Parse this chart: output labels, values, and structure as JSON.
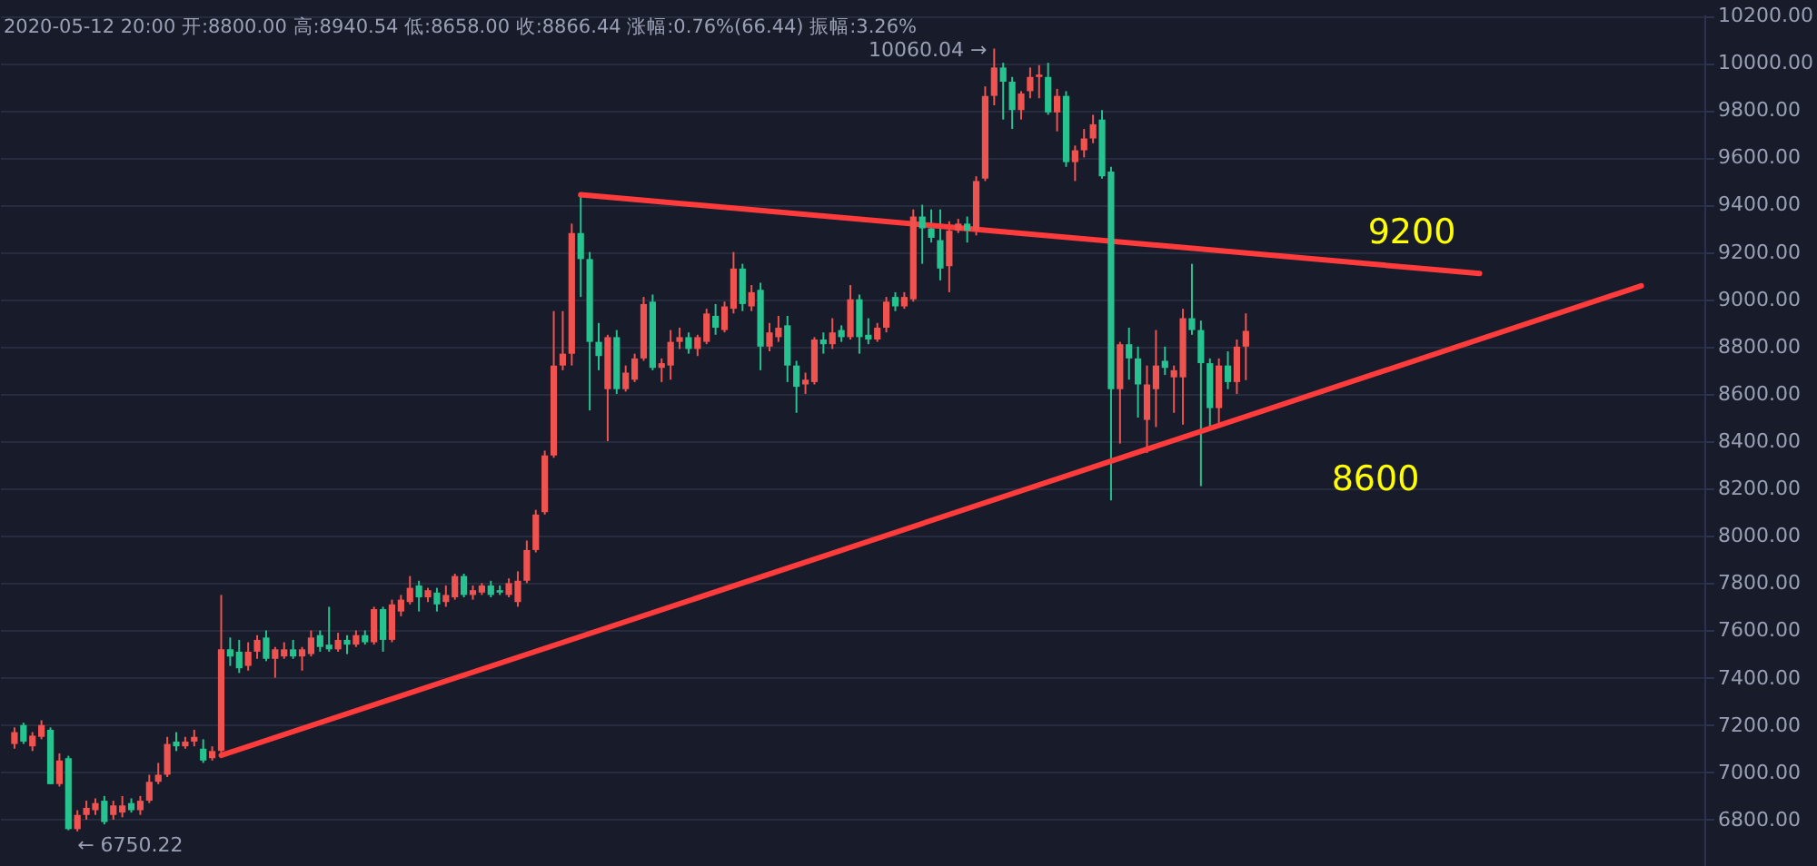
{
  "chart_data": {
    "type": "candlestick",
    "categories": [
      null,
      null,
      null,
      null,
      null,
      null,
      null,
      null,
      null,
      null,
      null,
      null,
      null,
      null,
      null,
      null,
      null,
      null,
      null,
      null,
      null,
      null,
      null,
      null,
      null,
      null,
      null,
      null,
      null,
      null,
      null,
      null,
      null,
      null,
      null,
      null,
      null,
      null,
      null,
      null,
      null,
      null,
      null,
      null,
      null,
      null,
      null,
      null,
      null,
      null,
      null,
      null,
      null,
      null,
      null,
      null,
      null,
      null,
      null,
      null,
      null,
      null,
      null,
      null,
      null,
      null,
      null,
      null,
      null,
      null,
      null,
      null,
      null,
      null,
      null,
      null,
      null,
      null,
      null,
      null,
      null,
      null,
      null,
      null,
      null,
      null,
      null,
      null,
      null,
      null,
      null,
      null,
      null,
      null,
      null,
      null,
      null,
      null,
      null,
      null,
      null,
      null,
      null,
      null,
      null,
      null,
      null,
      null,
      null,
      null,
      null,
      null,
      null,
      null,
      null,
      null,
      null,
      null,
      null,
      null,
      null,
      null,
      null,
      null,
      null,
      null,
      null,
      null,
      null,
      null,
      null,
      null,
      null,
      null,
      null,
      null,
      null,
      null,
      null,
      null,
      null,
      null,
      null,
      null,
      null,
      null,
      null,
      null,
      null,
      null,
      null,
      null,
      null,
      null,
      null,
      null,
      null,
      null,
      null,
      null,
      null,
      null,
      null,
      null,
      null,
      null,
      null,
      null,
      null,
      null,
      null,
      null,
      null,
      null,
      null,
      null,
      null,
      null,
      null,
      null,
      null,
      null
    ],
    "ohlc": [
      [
        7120,
        7190,
        7100,
        7170
      ],
      [
        7200,
        7210,
        7120,
        7130
      ],
      [
        7110,
        7170,
        7090,
        7155
      ],
      [
        7150,
        7220,
        7140,
        7200
      ],
      [
        7180,
        7190,
        6950,
        6950
      ],
      [
        6950,
        7080,
        6940,
        7050
      ],
      [
        7060,
        7070,
        6755,
        6760
      ],
      [
        6760,
        6840,
        6750.22,
        6820
      ],
      [
        6820,
        6880,
        6800,
        6850
      ],
      [
        6840,
        6890,
        6820,
        6870
      ],
      [
        6880,
        6900,
        6780,
        6790
      ],
      [
        6820,
        6880,
        6800,
        6860
      ],
      [
        6830,
        6900,
        6810,
        6860
      ],
      [
        6870,
        6890,
        6830,
        6840
      ],
      [
        6840,
        6900,
        6820,
        6880
      ],
      [
        6880,
        6990,
        6870,
        6960
      ],
      [
        6960,
        7040,
        6950,
        6990
      ],
      [
        6990,
        7150,
        6980,
        7120
      ],
      [
        7130,
        7170,
        7090,
        7110
      ],
      [
        7110,
        7150,
        7100,
        7130
      ],
      [
        7130,
        7180,
        7110,
        7150
      ],
      [
        7100,
        7140,
        7040,
        7050
      ],
      [
        7060,
        7110,
        7050,
        7090
      ],
      [
        7090,
        7750,
        7070,
        7520
      ],
      [
        7520,
        7570,
        7450,
        7490
      ],
      [
        7510,
        7560,
        7420,
        7440
      ],
      [
        7450,
        7550,
        7430,
        7510
      ],
      [
        7510,
        7580,
        7480,
        7560
      ],
      [
        7570,
        7600,
        7470,
        7480
      ],
      [
        7480,
        7530,
        7400,
        7520
      ],
      [
        7490,
        7550,
        7480,
        7520
      ],
      [
        7520,
        7560,
        7480,
        7490
      ],
      [
        7490,
        7530,
        7430,
        7520
      ],
      [
        7500,
        7600,
        7490,
        7570
      ],
      [
        7580,
        7600,
        7510,
        7530
      ],
      [
        7540,
        7700,
        7510,
        7520
      ],
      [
        7520,
        7590,
        7510,
        7560
      ],
      [
        7560,
        7580,
        7500,
        7540
      ],
      [
        7540,
        7600,
        7530,
        7580
      ],
      [
        7580,
        7600,
        7540,
        7550
      ],
      [
        7550,
        7700,
        7540,
        7690
      ],
      [
        7690,
        7700,
        7510,
        7560
      ],
      [
        7560,
        7730,
        7550,
        7710
      ],
      [
        7680,
        7750,
        7660,
        7730
      ],
      [
        7720,
        7830,
        7710,
        7780
      ],
      [
        7790,
        7810,
        7680,
        7740
      ],
      [
        7740,
        7780,
        7720,
        7770
      ],
      [
        7760,
        7780,
        7680,
        7710
      ],
      [
        7720,
        7790,
        7700,
        7750
      ],
      [
        7740,
        7840,
        7730,
        7830
      ],
      [
        7830,
        7840,
        7740,
        7750
      ],
      [
        7750,
        7790,
        7730,
        7770
      ],
      [
        7760,
        7800,
        7750,
        7790
      ],
      [
        7790,
        7810,
        7740,
        7750
      ],
      [
        7770,
        7790,
        7750,
        7760
      ],
      [
        7750,
        7820,
        7740,
        7800
      ],
      [
        7720,
        7850,
        7700,
        7810
      ],
      [
        7810,
        7980,
        7800,
        7940
      ],
      [
        7940,
        8110,
        7930,
        8090
      ],
      [
        8100,
        8360,
        8090,
        8340
      ],
      [
        8340,
        8950,
        8330,
        8720
      ],
      [
        8720,
        8950,
        8700,
        8770
      ],
      [
        8770,
        9320,
        8720,
        9280
      ],
      [
        9280,
        9442,
        9010,
        9170
      ],
      [
        9170,
        9200,
        8530,
        8820
      ],
      [
        8820,
        8900,
        8700,
        8760
      ],
      [
        8620,
        8850,
        8400,
        8840
      ],
      [
        8840,
        8870,
        8600,
        8620
      ],
      [
        8620,
        8720,
        8610,
        8690
      ],
      [
        8660,
        8770,
        8650,
        8750
      ],
      [
        8750,
        9010,
        8740,
        8980
      ],
      [
        8990,
        9020,
        8700,
        8710
      ],
      [
        8710,
        8750,
        8650,
        8730
      ],
      [
        8720,
        8870,
        8660,
        8820
      ],
      [
        8820,
        8880,
        8790,
        8840
      ],
      [
        8840,
        8860,
        8770,
        8790
      ],
      [
        8790,
        8850,
        8760,
        8840
      ],
      [
        8820,
        8960,
        8810,
        8940
      ],
      [
        8930,
        8980,
        8850,
        8880
      ],
      [
        8870,
        8990,
        8860,
        8970
      ],
      [
        8960,
        9200,
        8940,
        9130
      ],
      [
        9130,
        9150,
        8950,
        8980
      ],
      [
        8970,
        9060,
        8950,
        9030
      ],
      [
        9040,
        9070,
        8700,
        8800
      ],
      [
        8800,
        8900,
        8780,
        8860
      ],
      [
        8840,
        8930,
        8820,
        8880
      ],
      [
        8890,
        8930,
        8650,
        8720
      ],
      [
        8720,
        8740,
        8520,
        8630
      ],
      [
        8640,
        8690,
        8600,
        8660
      ],
      [
        8650,
        8840,
        8640,
        8830
      ],
      [
        8830,
        8860,
        8770,
        8810
      ],
      [
        8810,
        8920,
        8790,
        8860
      ],
      [
        8870,
        8890,
        8820,
        8840
      ],
      [
        8840,
        9060,
        8830,
        9000
      ],
      [
        9000,
        9020,
        8770,
        8840
      ],
      [
        8850,
        8920,
        8810,
        8830
      ],
      [
        8830,
        8900,
        8820,
        8880
      ],
      [
        8880,
        9010,
        8860,
        8990
      ],
      [
        9010,
        9030,
        8950,
        8970
      ],
      [
        8970,
        9030,
        8960,
        9010
      ],
      [
        9000,
        9380,
        8990,
        9350
      ],
      [
        9350,
        9400,
        9150,
        9300
      ],
      [
        9300,
        9380,
        9240,
        9260
      ],
      [
        9250,
        9380,
        9080,
        9130
      ],
      [
        9140,
        9330,
        9030,
        9290
      ],
      [
        9290,
        9340,
        9280,
        9320
      ],
      [
        9320,
        9350,
        9240,
        9290
      ],
      [
        9290,
        9520,
        9270,
        9500
      ],
      [
        9510,
        9900,
        9500,
        9860
      ],
      [
        9860,
        10060.04,
        9820,
        9980
      ],
      [
        9980,
        10000,
        9760,
        9920
      ],
      [
        9920,
        9940,
        9720,
        9800
      ],
      [
        9800,
        9880,
        9760,
        9870
      ],
      [
        9880,
        9980,
        9850,
        9940
      ],
      [
        9940,
        9990,
        9850,
        9950
      ],
      [
        9940,
        10000,
        9780,
        9790
      ],
      [
        9790,
        9890,
        9710,
        9860
      ],
      [
        9860,
        9880,
        9560,
        9580
      ],
      [
        9580,
        9650,
        9500,
        9630
      ],
      [
        9630,
        9720,
        9600,
        9680
      ],
      [
        9680,
        9780,
        9660,
        9740
      ],
      [
        9760,
        9800,
        9510,
        9520
      ],
      [
        9540,
        9560,
        8150,
        8620
      ],
      [
        8620,
        8820,
        8390,
        8810
      ],
      [
        8810,
        8880,
        8660,
        8750
      ],
      [
        8750,
        8800,
        8500,
        8640
      ],
      [
        8490,
        8720,
        8350,
        8640
      ],
      [
        8620,
        8870,
        8460,
        8720
      ],
      [
        8740,
        8800,
        8680,
        8710
      ],
      [
        8670,
        8720,
        8520,
        8700
      ],
      [
        8670,
        8960,
        8470,
        8920
      ],
      [
        8920,
        9150,
        8850,
        8870
      ],
      [
        8870,
        8910,
        8210,
        8730
      ],
      [
        8730,
        8750,
        8460,
        8540
      ],
      [
        8540,
        8750,
        8470,
        8720
      ],
      [
        8720,
        8780,
        8620,
        8650
      ],
      [
        8650,
        8830,
        8600,
        8800
      ],
      [
        8800,
        8940.54,
        8658,
        8866.44
      ],
      null,
      null,
      null,
      null,
      null,
      null,
      null,
      null,
      null,
      null,
      null,
      null,
      null,
      null,
      null,
      null,
      null,
      null,
      null,
      null,
      null,
      null,
      null,
      null,
      null,
      null,
      null,
      null,
      null,
      null,
      null,
      null,
      null,
      null,
      null,
      null,
      null,
      null,
      null,
      null,
      null,
      null,
      null,
      null
    ],
    "colors": [
      "#ef5350",
      "#26c28f",
      "#ef5350",
      "#ef5350",
      "#26c28f",
      "#ef5350",
      "#26c28f",
      "#ef5350",
      "#ef5350",
      "#ef5350",
      "#26c28f",
      "#ef5350",
      "#ef5350",
      "#26c28f",
      "#ef5350",
      "#ef5350",
      "#ef5350",
      "#ef5350",
      "#26c28f",
      "#ef5350",
      "#ef5350",
      "#26c28f",
      "#ef5350",
      "#ef5350",
      "#26c28f",
      "#26c28f",
      "#ef5350",
      "#ef5350",
      "#26c28f",
      "#ef5350",
      "#ef5350",
      "#26c28f",
      "#ef5350",
      "#ef5350",
      "#26c28f",
      "#26c28f",
      "#ef5350",
      "#26c28f",
      "#ef5350",
      "#26c28f",
      "#ef5350",
      "#26c28f",
      "#ef5350",
      "#ef5350",
      "#ef5350",
      "#26c28f",
      "#ef5350",
      "#26c28f",
      "#ef5350",
      "#ef5350",
      "#26c28f",
      "#ef5350",
      "#ef5350",
      "#26c28f",
      "#26c28f",
      "#ef5350",
      "#ef5350",
      "#ef5350",
      "#ef5350",
      "#ef5350",
      "#ef5350",
      "#ef5350",
      "#ef5350",
      "#26c28f",
      "#26c28f",
      "#26c28f",
      "#ef5350",
      "#26c28f",
      "#ef5350",
      "#ef5350",
      "#ef5350",
      "#26c28f",
      "#ef5350",
      "#ef5350",
      "#ef5350",
      "#26c28f",
      "#ef5350",
      "#ef5350",
      "#26c28f",
      "#ef5350",
      "#ef5350",
      "#26c28f",
      "#ef5350",
      "#26c28f",
      "#ef5350",
      "#ef5350",
      "#26c28f",
      "#26c28f",
      "#ef5350",
      "#ef5350",
      "#26c28f",
      "#ef5350",
      "#26c28f",
      "#ef5350",
      "#26c28f",
      "#26c28f",
      "#ef5350",
      "#ef5350",
      "#26c28f",
      "#ef5350",
      "#ef5350",
      "#26c28f",
      "#26c28f",
      "#26c28f",
      "#ef5350",
      "#ef5350",
      "#26c28f",
      "#ef5350",
      "#ef5350",
      "#ef5350",
      "#26c28f",
      "#26c28f",
      "#ef5350",
      "#ef5350",
      "#ef5350",
      "#26c28f",
      "#ef5350",
      "#26c28f",
      "#ef5350",
      "#ef5350",
      "#ef5350",
      "#26c28f",
      "#26c28f",
      "#ef5350",
      "#26c28f",
      "#26c28f",
      "#ef5350",
      "#ef5350",
      "#26c28f",
      "#ef5350",
      "#ef5350",
      "#26c28f",
      "#26c28f",
      "#26c28f",
      "#ef5350",
      "#26c28f",
      "#ef5350",
      "#ef5350",
      null,
      null,
      null,
      null,
      null,
      null,
      null,
      null,
      null,
      null,
      null,
      null,
      null,
      null,
      null,
      null,
      null,
      null,
      null,
      null,
      null,
      null,
      null,
      null,
      null,
      null,
      null,
      null,
      null,
      null,
      null,
      null,
      null,
      null,
      null,
      null,
      null,
      null,
      null,
      null,
      null,
      null,
      null,
      null
    ],
    "series": [
      {
        "type": "line",
        "color": "#ff3b3b",
        "values": [
          null,
          null,
          null,
          null,
          null,
          null,
          null,
          null,
          null,
          null,
          null,
          null,
          null,
          null,
          null,
          null,
          null,
          null,
          null,
          null,
          null,
          null,
          null,
          null,
          null,
          null,
          null,
          null,
          null,
          null,
          null,
          null,
          null,
          null,
          null,
          null,
          null,
          null,
          null,
          null,
          null,
          null,
          null,
          null,
          null,
          null,
          null,
          null,
          null,
          null,
          null,
          null,
          null,
          null,
          null,
          null,
          null,
          null,
          null,
          null,
          null,
          null,
          null,
          9442,
          null,
          null,
          null,
          null,
          null,
          null,
          null,
          null,
          null,
          null,
          null,
          null,
          null,
          null,
          null,
          null,
          null,
          null,
          null,
          null,
          null,
          null,
          null,
          null,
          null,
          null,
          null,
          null,
          null,
          null,
          null,
          null,
          null,
          null,
          null,
          null,
          null,
          null,
          null,
          null,
          null,
          null,
          null,
          null,
          null,
          null,
          null,
          null,
          null,
          null,
          null,
          null,
          null,
          null,
          null,
          null,
          null,
          null,
          null,
          null,
          null,
          null,
          null,
          null,
          null,
          null,
          null,
          null,
          null,
          null,
          null,
          null,
          null,
          null,
          null,
          null,
          null,
          null,
          null,
          null,
          null,
          null,
          null,
          null,
          null,
          null,
          null,
          null,
          null,
          null,
          null,
          null,
          null,
          null,
          null,
          null,
          null,
          null,
          null,
          9109,
          null,
          null,
          null,
          null,
          null,
          null,
          null,
          null,
          null,
          null,
          null,
          null,
          null,
          null,
          null,
          null,
          null,
          null
        ]
      },
      {
        "type": "line",
        "color": "#ff3b3b",
        "values": [
          null,
          null,
          null,
          null,
          null,
          null,
          null,
          null,
          null,
          null,
          null,
          null,
          null,
          null,
          null,
          null,
          null,
          null,
          null,
          null,
          null,
          null,
          null,
          7072,
          null,
          null,
          null,
          null,
          null,
          null,
          null,
          null,
          null,
          null,
          null,
          null,
          null,
          null,
          null,
          null,
          null,
          null,
          null,
          null,
          null,
          null,
          null,
          null,
          null,
          null,
          null,
          null,
          null,
          null,
          null,
          null,
          null,
          null,
          null,
          null,
          null,
          null,
          null,
          null,
          null,
          null,
          null,
          null,
          null,
          null,
          null,
          null,
          null,
          null,
          null,
          null,
          null,
          null,
          null,
          null,
          null,
          null,
          null,
          null,
          null,
          null,
          null,
          null,
          null,
          null,
          null,
          null,
          null,
          null,
          null,
          null,
          null,
          null,
          null,
          null,
          null,
          null,
          null,
          null,
          null,
          null,
          null,
          null,
          null,
          null,
          null,
          null,
          null,
          null,
          null,
          null,
          null,
          null,
          null,
          null,
          null,
          null,
          null,
          null,
          null,
          null,
          null,
          null,
          null,
          null,
          null,
          null,
          null,
          null,
          null,
          null,
          null,
          null,
          null,
          null,
          null,
          null,
          null,
          null,
          null,
          null,
          null,
          null,
          null,
          null,
          null,
          null,
          null,
          null,
          null,
          null,
          null,
          null,
          null,
          null,
          null,
          null,
          null,
          null,
          null,
          null,
          null,
          null,
          null,
          null,
          null,
          null,
          null,
          null,
          null,
          null,
          null,
          null,
          null,
          null,
          null,
          9057
        ]
      }
    ],
    "ylim": [
      6604,
      10204
    ],
    "yticks": [
      {
        "value": 6800,
        "label": "6800.00"
      },
      {
        "value": 7000,
        "label": "7000.00"
      },
      {
        "value": 7200,
        "label": "7200.00"
      },
      {
        "value": 7400,
        "label": "7400.00"
      },
      {
        "value": 7600,
        "label": "7600.00"
      },
      {
        "value": 7800,
        "label": "7800.00"
      },
      {
        "value": 8000,
        "label": "8000.00"
      },
      {
        "value": 8200,
        "label": "8200.00"
      },
      {
        "value": 8400,
        "label": "8400.00"
      },
      {
        "value": 8600,
        "label": "8600.00"
      },
      {
        "value": 8800,
        "label": "8800.00"
      },
      {
        "value": 9000,
        "label": "9000.00"
      },
      {
        "value": 9200,
        "label": "9200.00"
      },
      {
        "value": 9400,
        "label": "9400.00"
      },
      {
        "value": 9600,
        "label": "9600.00"
      },
      {
        "value": 9800,
        "label": "9800.00"
      },
      {
        "value": 10000,
        "label": "10000.00"
      },
      {
        "value": 10200,
        "label": "10200.00"
      }
    ],
    "grid": "y",
    "tick_labels": "y",
    "annotations": [
      "2020-05-12 20:00 开:8800.00 高:8940.54 低:8658.00 收:8866.44 涨幅:0.76%(66.44) 振幅:3.26%",
      "10060.04 →",
      "← 6750.22",
      "9200",
      "8600"
    ]
  }
}
